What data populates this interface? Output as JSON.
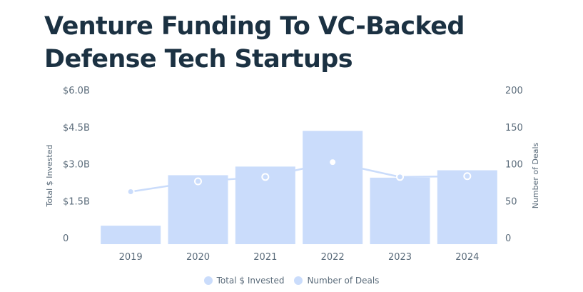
{
  "title": "Venture Funding To VC-Backed Defense Tech Startups",
  "colors": {
    "bar": "#cadcfb",
    "line": "#cadcfb",
    "title": "#1b3142",
    "text": "#5a6b7a"
  },
  "chart_data": {
    "type": "bar",
    "title": "Venture Funding To VC-Backed Defense Tech Startups",
    "categories": [
      "2019",
      "2020",
      "2021",
      "2022",
      "2023",
      "2024"
    ],
    "series": [
      {
        "name": "Total $ Invested",
        "type": "bar",
        "axis": "left",
        "values": [
          0.75,
          2.8,
          3.15,
          4.6,
          2.7,
          3.0
        ]
      },
      {
        "name": "Number of Deals",
        "type": "line",
        "axis": "right",
        "values": [
          71,
          85,
          91,
          111,
          91,
          92
        ]
      }
    ],
    "ylabel": "Total $ Invested",
    "y2label": "Number of Deals",
    "ylim": [
      0,
      6.0
    ],
    "y2lim": [
      0,
      200
    ],
    "yticks": [
      "0",
      "$1.5B",
      "$3.0B",
      "$4.5B",
      "$6.0B"
    ],
    "y2ticks": [
      "0",
      "50",
      "100",
      "150",
      "200"
    ],
    "grid": false,
    "legend": "bottom"
  }
}
